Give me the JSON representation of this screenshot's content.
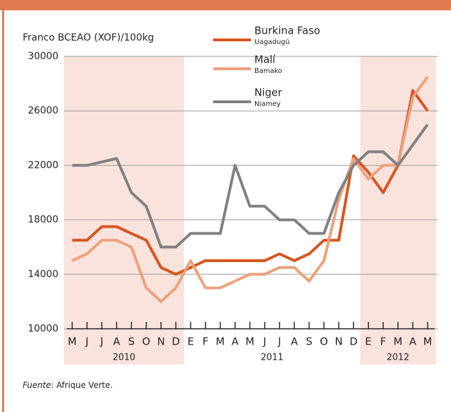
{
  "chart_data": {
    "type": "line",
    "y_label": "Franco BCEAO (XOF)/100kg",
    "groups": [
      {
        "label": "2010",
        "shaded": true,
        "categories": [
          "M",
          "J",
          "J",
          "A",
          "S",
          "O",
          "N",
          "D"
        ]
      },
      {
        "label": "2011",
        "shaded": false,
        "categories": [
          "E",
          "F",
          "M",
          "A",
          "M",
          "J",
          "J",
          "A",
          "S",
          "O",
          "N",
          "D"
        ]
      },
      {
        "label": "2012",
        "shaded": true,
        "categories": [
          "E",
          "F",
          "M",
          "A",
          "M"
        ]
      }
    ],
    "ylim": [
      10000,
      30000
    ],
    "yticks": [
      10000,
      14000,
      18000,
      22000,
      26000,
      30000
    ],
    "grid": true,
    "series": [
      {
        "name": "Burkina Faso",
        "city": "Uagadugú",
        "color": "#d9531e",
        "values": [
          16500,
          16500,
          17500,
          17500,
          17000,
          16500,
          14500,
          14000,
          14500,
          15000,
          15000,
          15000,
          15000,
          15000,
          15500,
          15000,
          15500,
          16500,
          16500,
          22700,
          21500,
          20000,
          22000,
          27500,
          26000
        ]
      },
      {
        "name": "Malí",
        "city": "Bamako",
        "color": "#eea07a",
        "values": [
          15000,
          15500,
          16500,
          16500,
          16000,
          13000,
          12000,
          13000,
          15000,
          13000,
          13000,
          13500,
          14000,
          14000,
          14500,
          14500,
          13500,
          15000,
          19500,
          22500,
          21000,
          22000,
          22000,
          27000,
          28500
        ]
      },
      {
        "name": "Niger",
        "city": "Niamey",
        "color": "#808080",
        "values": [
          22000,
          22000,
          22250,
          22500,
          20000,
          19000,
          16000,
          16000,
          17000,
          17000,
          17000,
          22000,
          19000,
          19000,
          18000,
          18000,
          17000,
          17000,
          20000,
          22000,
          23000,
          23000,
          22000,
          23500,
          25000
        ]
      }
    ],
    "source_label": "Fuente",
    "source": ": Afrique Verte."
  }
}
